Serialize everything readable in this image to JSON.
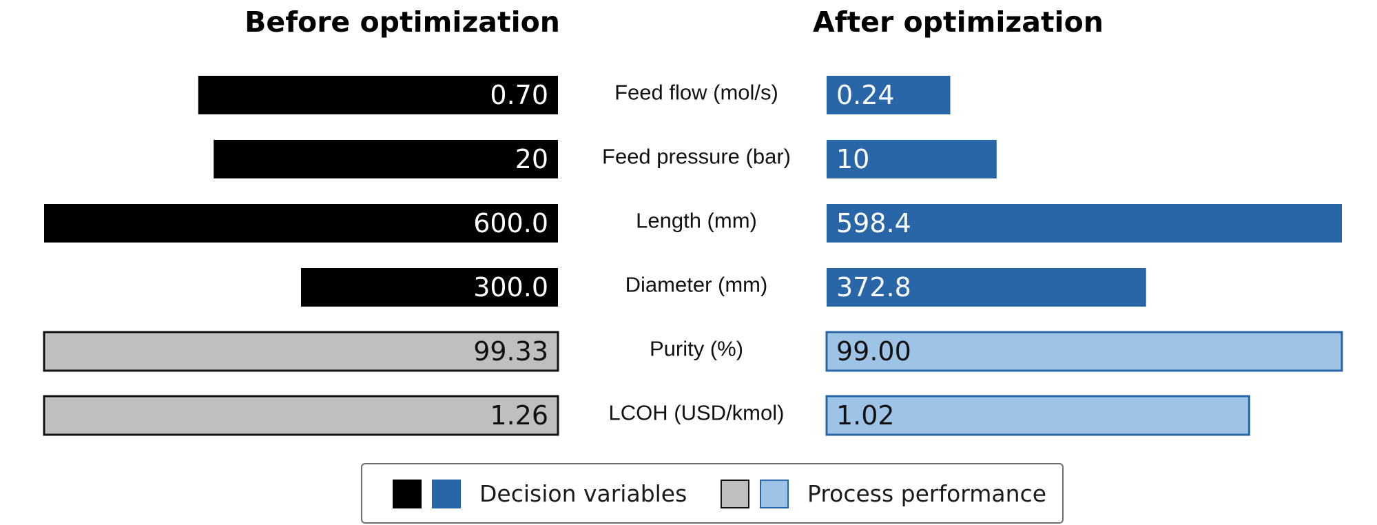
{
  "chart_data": {
    "type": "bar",
    "layout": "mirrored-horizontal",
    "titles": {
      "left": "Before optimization",
      "right": "After optimization"
    },
    "categories": [
      "Feed flow (mol/s)",
      "Feed pressure (bar)",
      "Length (mm)",
      "Diameter (mm)",
      "Purity (%)",
      "LCOH (USD/kmol)"
    ],
    "groups": [
      "decision",
      "decision",
      "decision",
      "decision",
      "performance",
      "performance"
    ],
    "series": [
      {
        "name": "Before optimization",
        "values": [
          0.7,
          20,
          600.0,
          300.0,
          99.33,
          1.26
        ],
        "labels": [
          "0.70",
          "20",
          "600.0",
          "300.0",
          "99.33",
          "1.26"
        ]
      },
      {
        "name": "After optimization",
        "values": [
          0.24,
          10,
          598.4,
          372.8,
          99.0,
          1.02
        ],
        "labels": [
          "0.24",
          "10",
          "598.4",
          "372.8",
          "99.00",
          "1.02"
        ]
      }
    ],
    "relative_length": {
      "before": [
        0.7,
        0.67,
        1.0,
        0.5,
        1.0,
        1.0
      ],
      "after": [
        0.24,
        0.33,
        1.0,
        0.62,
        1.0,
        0.82
      ]
    },
    "legend": {
      "position": "bottom-center",
      "items": [
        {
          "label": "Decision variables",
          "colors": [
            "#000000",
            "#2966a8"
          ]
        },
        {
          "label": "Process performance",
          "colors": [
            "#bfbfbf",
            "#9dc3e6"
          ]
        }
      ]
    },
    "colors": {
      "before_decision": "#000000",
      "after_decision": "#2966a8",
      "before_performance": "#bfbfbf",
      "after_performance": "#9dc3e6",
      "performance_before_border": "#111111",
      "performance_after_border": "#2966a8"
    },
    "grid": false
  }
}
